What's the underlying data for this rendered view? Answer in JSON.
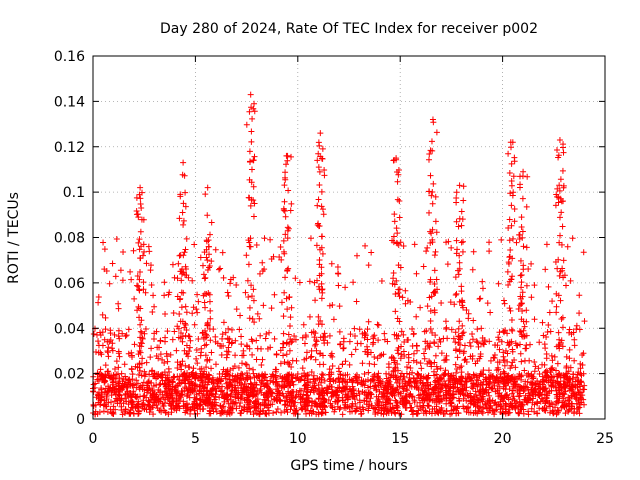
{
  "chart_data": {
    "type": "scatter",
    "title": "Day 280 of 2024, Rate Of TEC Index for receiver p002",
    "xlabel": "GPS time / hours",
    "ylabel": "ROTI / TECUs",
    "xlim": [
      0,
      25
    ],
    "ylim": [
      0,
      0.16
    ],
    "xticks": [
      "0",
      "5",
      "10",
      "15",
      "20",
      "25"
    ],
    "yticks": [
      "0",
      "0.02",
      "0.04",
      "0.06",
      "0.08",
      "0.1",
      "0.12",
      "0.14",
      "0.16"
    ],
    "grid": true,
    "marker": "+",
    "color": "#ff0000",
    "x_range_data": [
      0,
      24
    ],
    "peaks": [
      {
        "x": 2.3,
        "y": 0.102
      },
      {
        "x": 4.4,
        "y": 0.113
      },
      {
        "x": 5.6,
        "y": 0.102
      },
      {
        "x": 7.7,
        "y": 0.143
      },
      {
        "x": 9.5,
        "y": 0.116
      },
      {
        "x": 11.1,
        "y": 0.126
      },
      {
        "x": 14.8,
        "y": 0.115
      },
      {
        "x": 16.6,
        "y": 0.132
      },
      {
        "x": 17.9,
        "y": 0.103
      },
      {
        "x": 20.4,
        "y": 0.122
      },
      {
        "x": 21.0,
        "y": 0.109
      },
      {
        "x": 22.8,
        "y": 0.123
      }
    ]
  }
}
